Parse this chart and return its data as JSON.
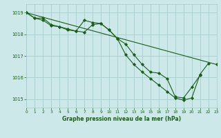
{
  "xlabel": "Graphe pression niveau de la mer (hPa)",
  "x_ticks": [
    0,
    1,
    2,
    3,
    4,
    5,
    6,
    7,
    8,
    9,
    10,
    11,
    12,
    13,
    14,
    15,
    16,
    17,
    18,
    19,
    20,
    21,
    22,
    23
  ],
  "ylim": [
    1014.6,
    1019.4
  ],
  "yticks": [
    1015,
    1016,
    1017,
    1018,
    1019
  ],
  "xlim": [
    0,
    23
  ],
  "bg_color": "#cce8e8",
  "grid_color": "#aacccc",
  "line_color": "#1a5c1a",
  "series1_x": [
    0,
    1,
    2,
    3,
    4,
    5,
    6,
    7,
    8,
    9,
    10,
    11,
    12,
    13,
    14,
    15,
    16,
    17,
    18,
    19,
    20,
    21,
    22
  ],
  "series1_y": [
    1019.0,
    1018.75,
    1018.75,
    1018.45,
    1018.35,
    1018.25,
    1018.15,
    1018.65,
    1018.55,
    1018.5,
    1018.2,
    1017.8,
    1017.05,
    1016.6,
    1016.25,
    1015.95,
    1015.65,
    1015.35,
    1015.05,
    1014.95,
    1015.05,
    1016.15,
    1016.65
  ],
  "series2_x": [
    0,
    1,
    2,
    3,
    4,
    5,
    6,
    7,
    8,
    9,
    10,
    11,
    12,
    13,
    14,
    15,
    16,
    17,
    18,
    19,
    20,
    21
  ],
  "series2_y": [
    1019.0,
    1018.75,
    1018.65,
    1018.4,
    1018.35,
    1018.2,
    1018.15,
    1018.1,
    1018.45,
    1018.5,
    1018.2,
    1017.8,
    1017.55,
    1017.05,
    1016.6,
    1016.25,
    1016.2,
    1015.95,
    1015.1,
    1015.05,
    1015.55,
    1016.1
  ],
  "series3_x": [
    0,
    23
  ],
  "series3_y": [
    1019.0,
    1016.6
  ]
}
